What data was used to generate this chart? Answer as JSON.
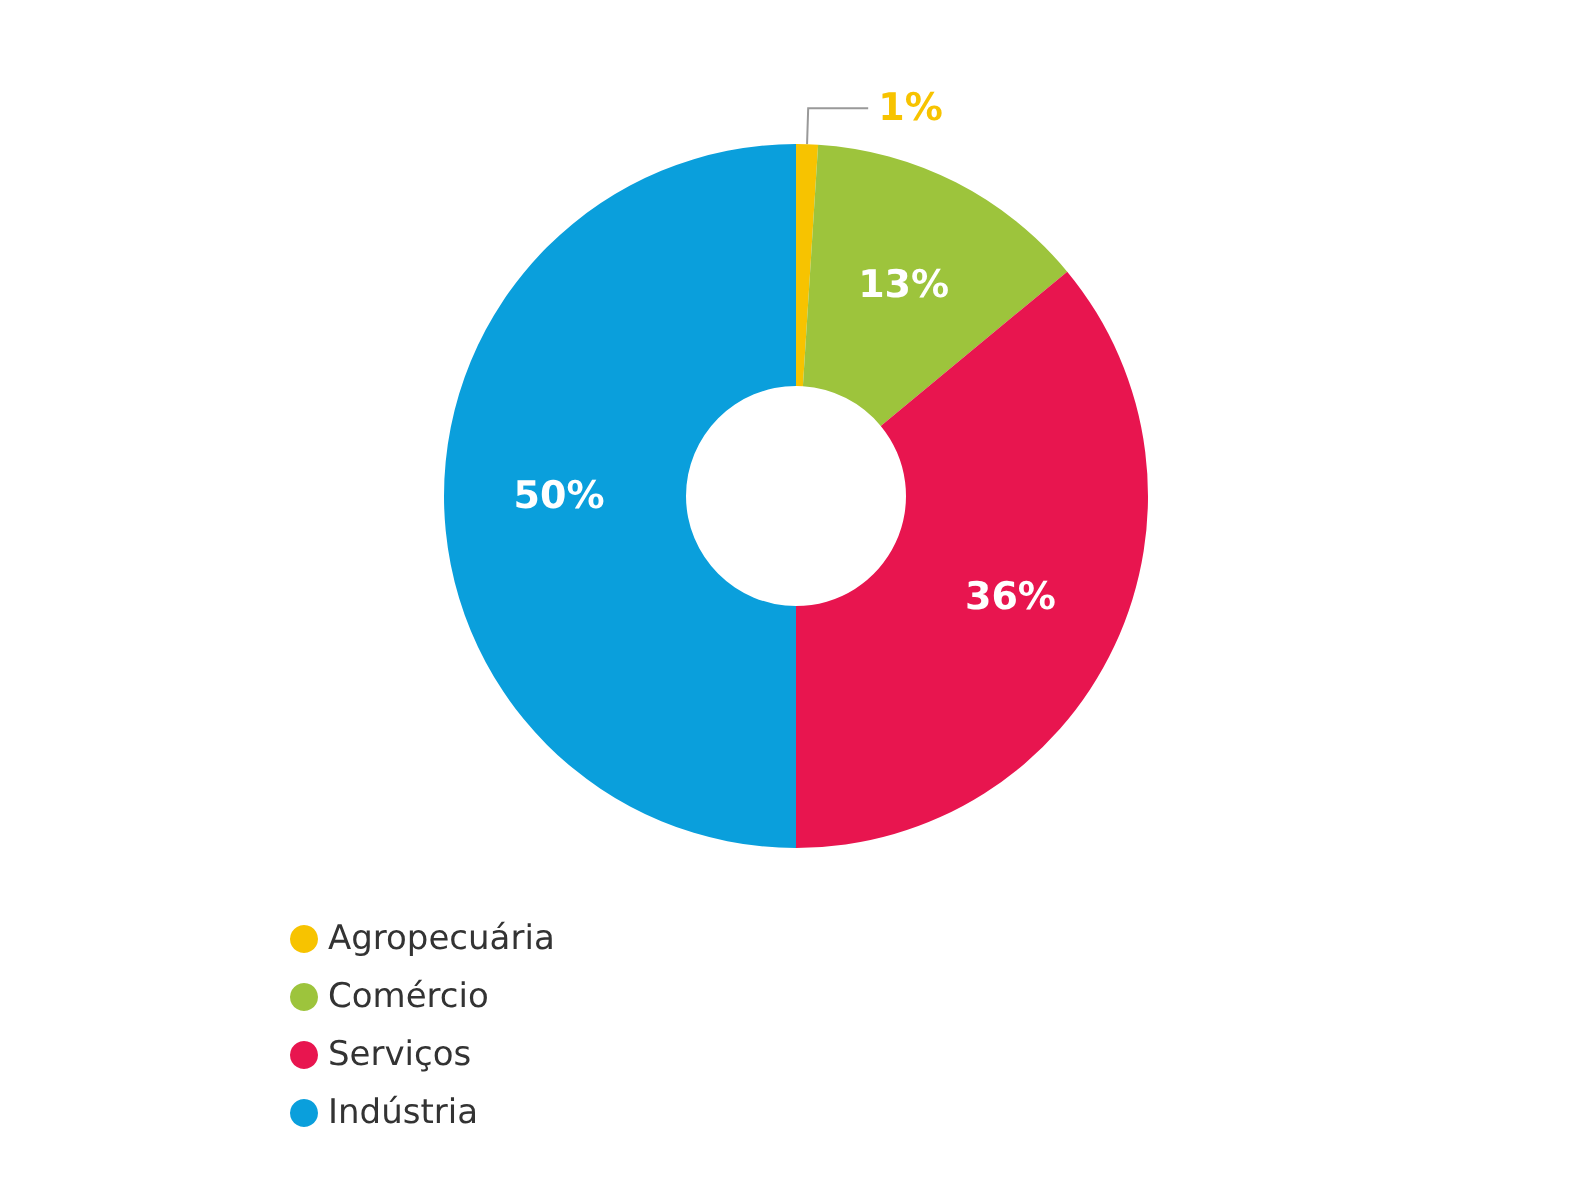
{
  "chart_data": {
    "type": "donut",
    "categories": [
      "Agropecuária",
      "Comércio",
      "Serviços",
      "Indústria"
    ],
    "values": [
      1,
      13,
      36,
      50
    ],
    "colors": [
      "#f7c300",
      "#9dc43c",
      "#e8154f",
      "#0a9fdc"
    ],
    "value_labels": [
      "1%",
      "13%",
      "36%",
      "50%"
    ],
    "legend": "bottom left"
  }
}
